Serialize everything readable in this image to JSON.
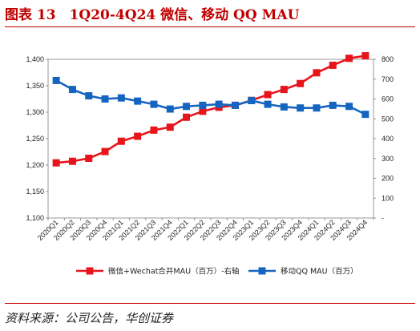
{
  "header": {
    "title": "图表 13　1Q20-4Q24 微信、移动 QQ MAU"
  },
  "footer": {
    "source": "资料来源：公司公告，华创证券"
  },
  "chart_data": {
    "type": "line",
    "title": "",
    "categories": [
      "2020Q1",
      "2020Q2",
      "2020Q3",
      "2020Q4",
      "2021Q1",
      "2021Q2",
      "2021Q3",
      "2021Q4",
      "2022Q1",
      "2022Q2",
      "2022Q3",
      "2022Q4",
      "2023Q1",
      "2023Q2",
      "2023Q3",
      "2023Q4",
      "2024Q1",
      "2024Q2",
      "2024Q3",
      "2024Q4"
    ],
    "y_left": {
      "min": 1100,
      "max": 1400,
      "step": 50,
      "ticks": [
        "1,100",
        "1,150",
        "1,200",
        "1,250",
        "1,300",
        "1,350",
        "1,400"
      ]
    },
    "y_right": {
      "min": 0,
      "max": 800,
      "step": 100,
      "ticks": [
        "-",
        "100",
        "200",
        "300",
        "400",
        "500",
        "600",
        "700",
        "800"
      ]
    },
    "series": [
      {
        "name": "微信+Wechat合并MAU（百万）-右轴",
        "axis": "right",
        "color": "#e8141c",
        "values": [
          278,
          286,
          301,
          335,
          387,
          412,
          443,
          458,
          508,
          538,
          558,
          568,
          593,
          622,
          648,
          678,
          732,
          770,
          805,
          818
        ]
      },
      {
        "name": "移动QQ MAU（百万）",
        "axis": "left",
        "color": "#1565c0",
        "values": [
          1360,
          1343,
          1331,
          1325,
          1327,
          1321,
          1315,
          1306,
          1311,
          1313,
          1315,
          1313,
          1322,
          1315,
          1310,
          1308,
          1308,
          1313,
          1311,
          1296
        ]
      }
    ],
    "legend_position": "bottom",
    "grid": false
  }
}
